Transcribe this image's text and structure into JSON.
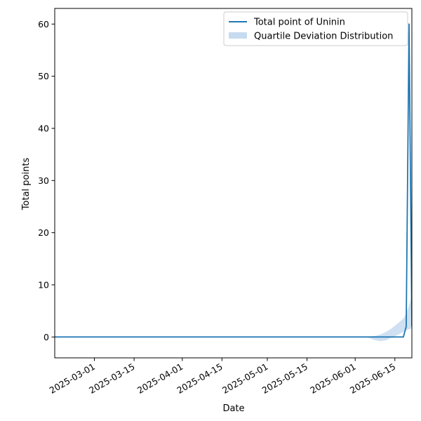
{
  "chart_data": {
    "type": "line",
    "xlabel": "Date",
    "ylabel": "Total points",
    "xlim": [
      "2025-02-15",
      "2025-06-21"
    ],
    "ylim": [
      -4,
      63
    ],
    "x_ticks": [
      "2025-03-01",
      "2025-03-15",
      "2025-04-01",
      "2025-04-15",
      "2025-05-01",
      "2025-05-15",
      "2025-06-01",
      "2025-06-15"
    ],
    "y_ticks": [
      0,
      10,
      20,
      30,
      40,
      50,
      60
    ],
    "legend_position": "upper-right",
    "grid": false,
    "series": [
      {
        "name": "Total point of Uninin",
        "color": "#1f77b4",
        "x": [
          "2025-02-15",
          "2025-06-18",
          "2025-06-19",
          "2025-06-20",
          "2025-06-21"
        ],
        "y": [
          0,
          0,
          2,
          60,
          2
        ]
      }
    ],
    "band": {
      "name": "Quartile Deviation Distribution",
      "color": "#c6dbef",
      "x": [
        "2025-06-04",
        "2025-06-06",
        "2025-06-08",
        "2025-06-10",
        "2025-06-12",
        "2025-06-14",
        "2025-06-16",
        "2025-06-18",
        "2025-06-19",
        "2025-06-20",
        "2025-06-21"
      ],
      "lower": [
        0,
        -0.2,
        -0.6,
        -0.8,
        -0.6,
        -0.1,
        0.4,
        1.0,
        1.3,
        1.5,
        1.6
      ],
      "upper": [
        0,
        0.1,
        0.2,
        0.5,
        1.0,
        1.7,
        2.6,
        3.5,
        4.5,
        6.0,
        8.0
      ]
    }
  }
}
